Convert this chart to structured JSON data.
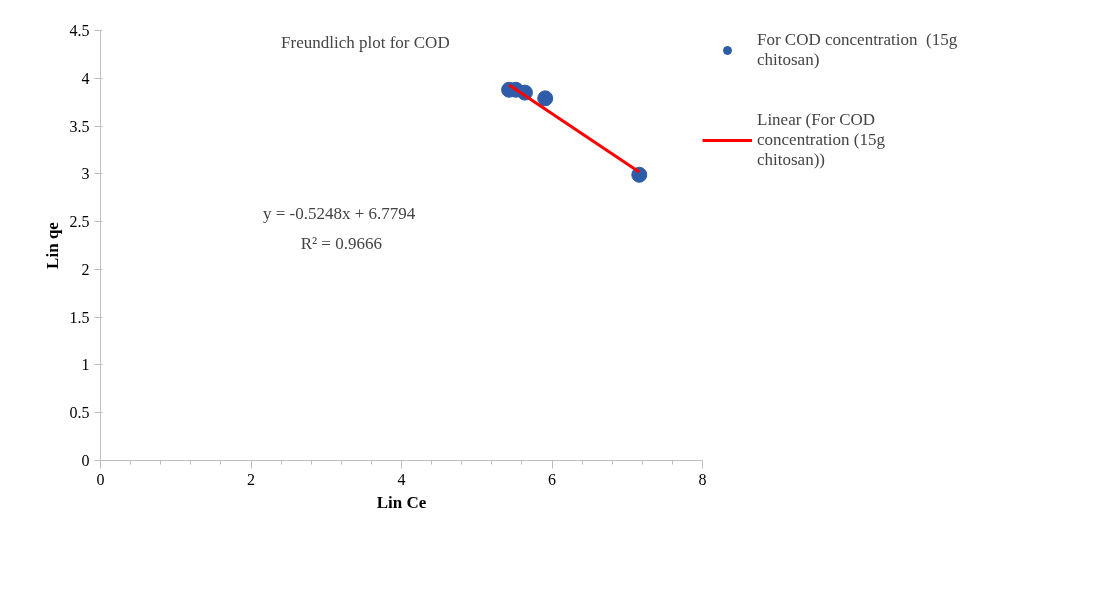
{
  "chart_data": {
    "type": "scatter",
    "title": "Freundlich plot for COD",
    "xlabel": "Lin Ce",
    "ylabel": "Lin qe",
    "xlim": [
      0,
      8
    ],
    "xticks": [
      0,
      2,
      4,
      6,
      8
    ],
    "ylim": [
      0,
      4.5
    ],
    "yticks": [
      0,
      0.5,
      1,
      1.5,
      2,
      2.5,
      3,
      3.5,
      4,
      4.5
    ],
    "grid": false,
    "legend": "right",
    "marker": "circle",
    "annotations": [
      "y = -0.5248x  + 6.7794",
      "R² = 0.9666"
    ],
    "series": [
      {
        "name": "For COD concentration  (15g chitosan)",
        "color": "#2e5ca8",
        "x": [
          5.43,
          5.52,
          5.64,
          5.91,
          7.16
        ],
        "values": [
          3.88,
          3.88,
          3.85,
          3.79,
          2.99
        ]
      },
      {
        "name": "Linear (For COD concentration (15g chitosan))",
        "type": "line",
        "color": "#ff0000",
        "line_style": "solid",
        "marker": "none",
        "x": [
          5.43,
          7.16
        ],
        "values": [
          3.93,
          3.02
        ]
      }
    ]
  }
}
